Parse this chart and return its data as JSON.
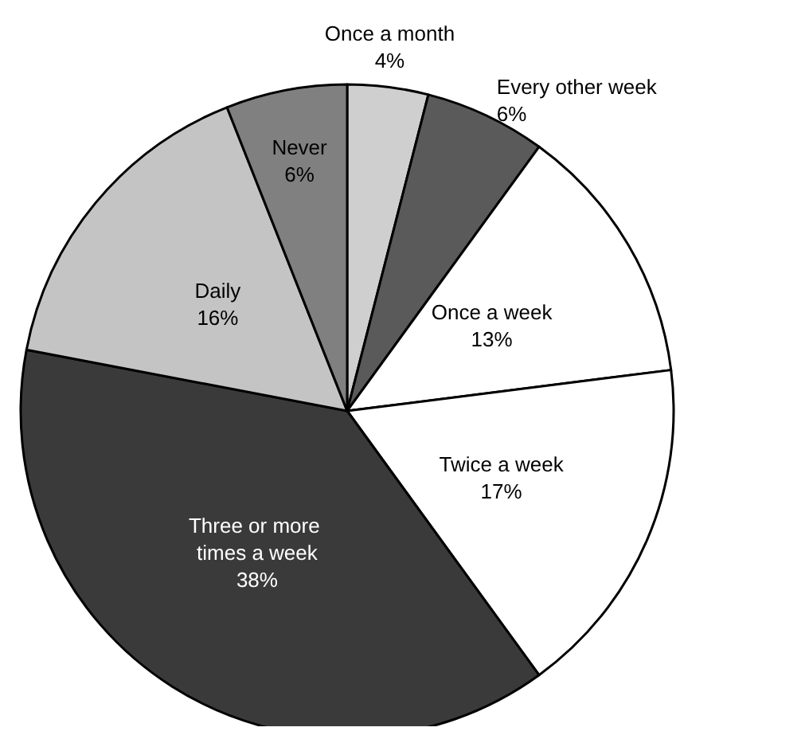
{
  "chart_data": {
    "type": "pie",
    "categories": [
      "Once a month",
      "Every other week",
      "Once a week",
      "Twice a week",
      "Three or more times a week",
      "Daily",
      "Never"
    ],
    "values": [
      4,
      6,
      13,
      17,
      38,
      16,
      6
    ],
    "colors": [
      "#cfcfcf",
      "#5a5a5a",
      "#ffffff",
      "#ffffff",
      "#3a3a3a",
      "#c4c4c4",
      "#808080"
    ],
    "value_labels": [
      "4%",
      "6%",
      "13%",
      "17%",
      "38%",
      "16%",
      "6%"
    ],
    "legend": false
  }
}
